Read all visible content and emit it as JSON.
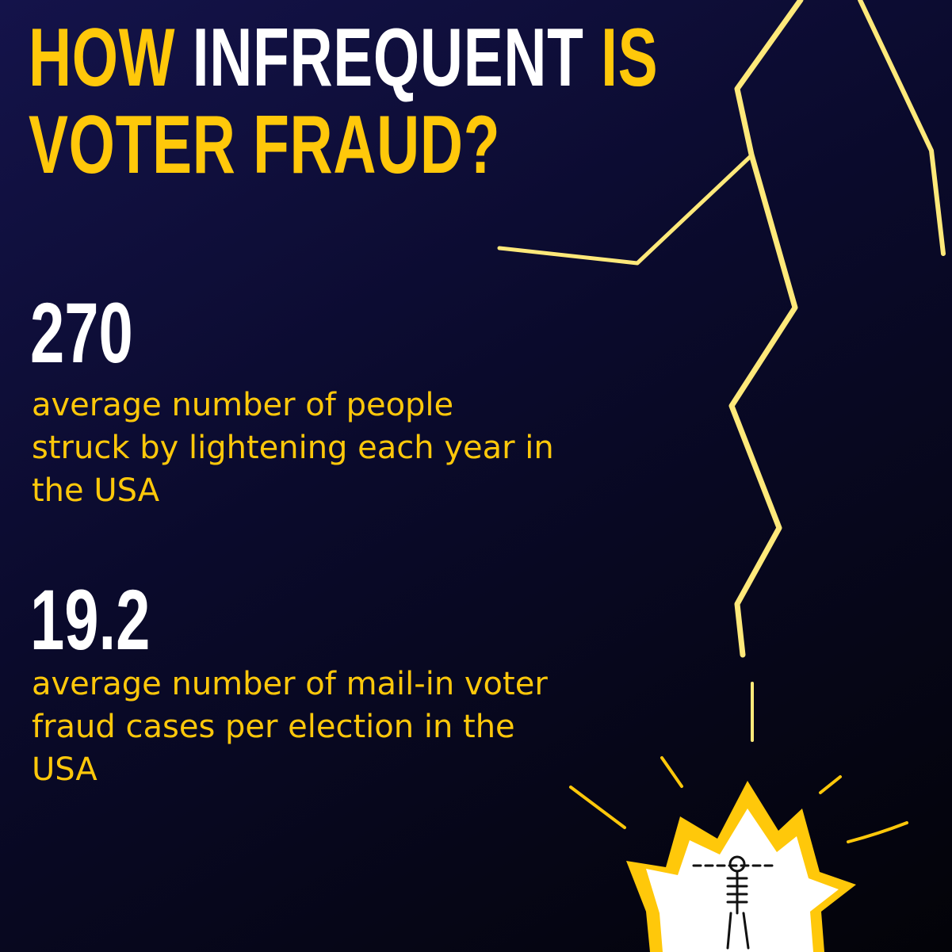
{
  "title": {
    "word1": "HOW",
    "word2": "INFREQUENT",
    "word3": "IS",
    "line2": "VOTER FRAUD?"
  },
  "stats": [
    {
      "value": "270",
      "description": "average number of people struck by lightening each year in the USA"
    },
    {
      "value": "19.2",
      "description": "average number of  mail-in voter fraud cases per election in the USA"
    }
  ],
  "colors": {
    "accent": "#FFC80A",
    "text": "#FFFFFF",
    "background_top": "#14134a",
    "background_bottom": "#030308"
  },
  "illustration": {
    "icons": [
      "lightning-bolt-icon",
      "explosion-burst-icon",
      "skeleton-figure-icon"
    ]
  }
}
